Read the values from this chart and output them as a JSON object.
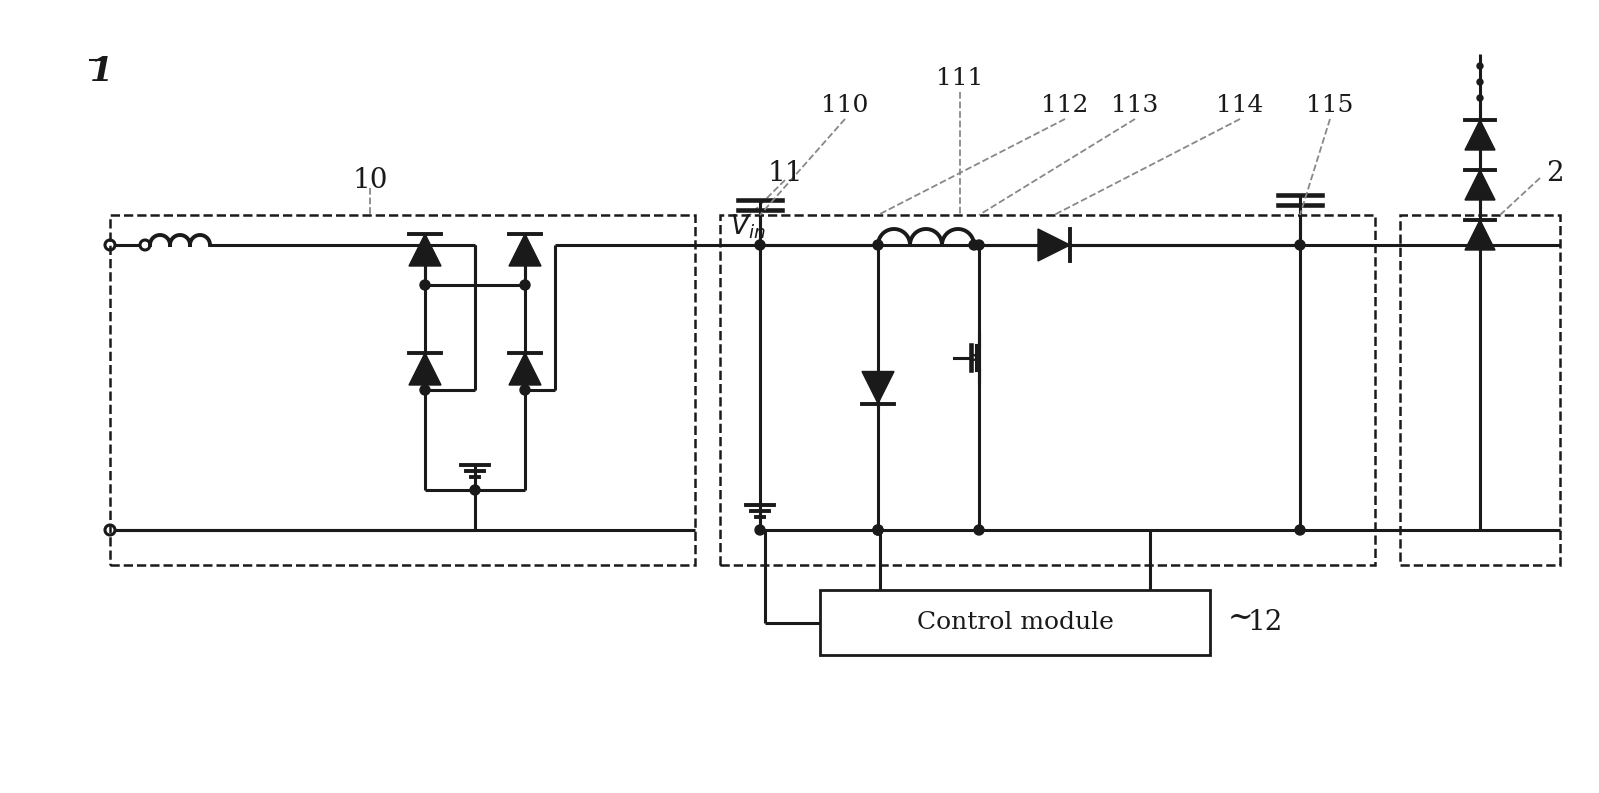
{
  "background_color": "#ffffff",
  "line_color": "#1a1a1a",
  "labels": {
    "main": "1",
    "block10": "10",
    "block11": "11",
    "block110": "110",
    "block111": "111",
    "block112": "112",
    "block113": "113",
    "block114": "114",
    "block115": "115",
    "block2": "2",
    "block12": "12",
    "control": "Control module"
  },
  "lw": 2.2,
  "lw_thick": 2.8,
  "dot_r": 5
}
